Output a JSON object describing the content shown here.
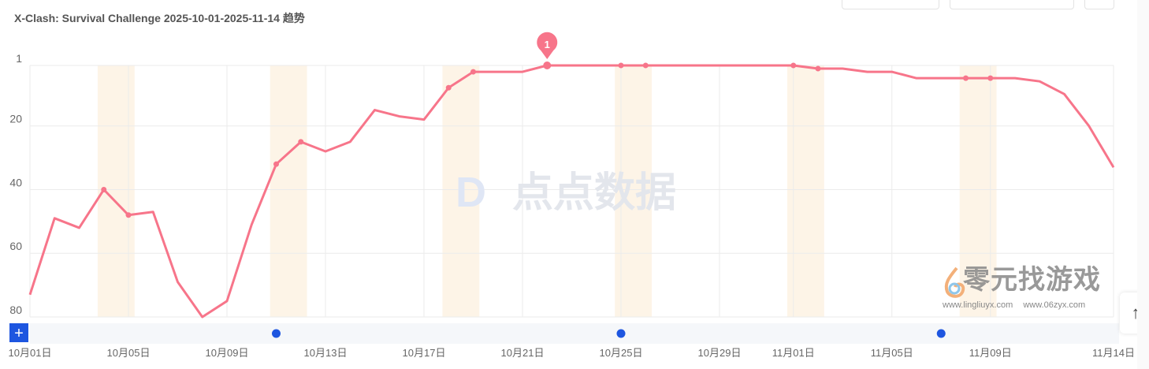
{
  "title": "X-Clash: Survival Challenge 2025-10-01-2025-11-14 趋势",
  "watermark_center": "点点数据",
  "watermark_corner": {
    "text": "零元找游戏",
    "url1": "www.lingliuyx.com",
    "url2": "www.06zyx.com"
  },
  "back_to_top_icon": "arrow-up-icon",
  "zoom_button_icon": "plus-icon",
  "colors": {
    "line": "#f7758a",
    "weekend": "#fdf4e7",
    "event_dot": "#1e56e0",
    "grid": "#ebebeb"
  },
  "chart_data": {
    "type": "line",
    "title": "X-Clash: Survival Challenge 2025-10-01-2025-11-14 趋势",
    "y_inverted": true,
    "ylim": [
      1,
      80
    ],
    "yticks": [
      "1",
      "20",
      "40",
      "60",
      "80"
    ],
    "xticks": [
      "10月01日",
      "10月05日",
      "10月09日",
      "10月13日",
      "10月17日",
      "10月21日",
      "10月25日",
      "10月29日",
      "11月01日",
      "11月05日",
      "11月09日",
      "11月14日"
    ],
    "xtick_days": [
      0,
      4,
      8,
      12,
      16,
      20,
      24,
      28,
      31,
      35,
      39,
      44
    ],
    "start_date": "2025-10-01",
    "values": [
      73,
      49,
      52,
      40,
      48,
      47,
      69,
      80,
      75,
      51,
      32,
      25,
      28,
      25,
      15,
      17,
      18,
      8,
      3,
      3,
      3,
      1,
      1,
      1,
      1,
      1,
      1,
      1,
      1,
      1,
      1,
      1,
      2,
      2,
      3,
      3,
      5,
      5,
      5,
      5,
      5,
      6,
      10,
      20,
      33
    ],
    "marked_days": [
      3,
      4,
      10,
      11,
      17,
      18,
      21,
      24,
      25,
      31,
      32,
      38,
      39
    ],
    "peak_label": {
      "day": 21,
      "text": "1"
    },
    "weekend_days": [
      [
        3,
        4
      ],
      [
        10,
        11
      ],
      [
        17,
        18
      ],
      [
        24,
        25
      ],
      [
        31,
        32
      ],
      [
        38,
        39
      ]
    ],
    "event_days": [
      10,
      24,
      37
    ],
    "grid": true
  }
}
